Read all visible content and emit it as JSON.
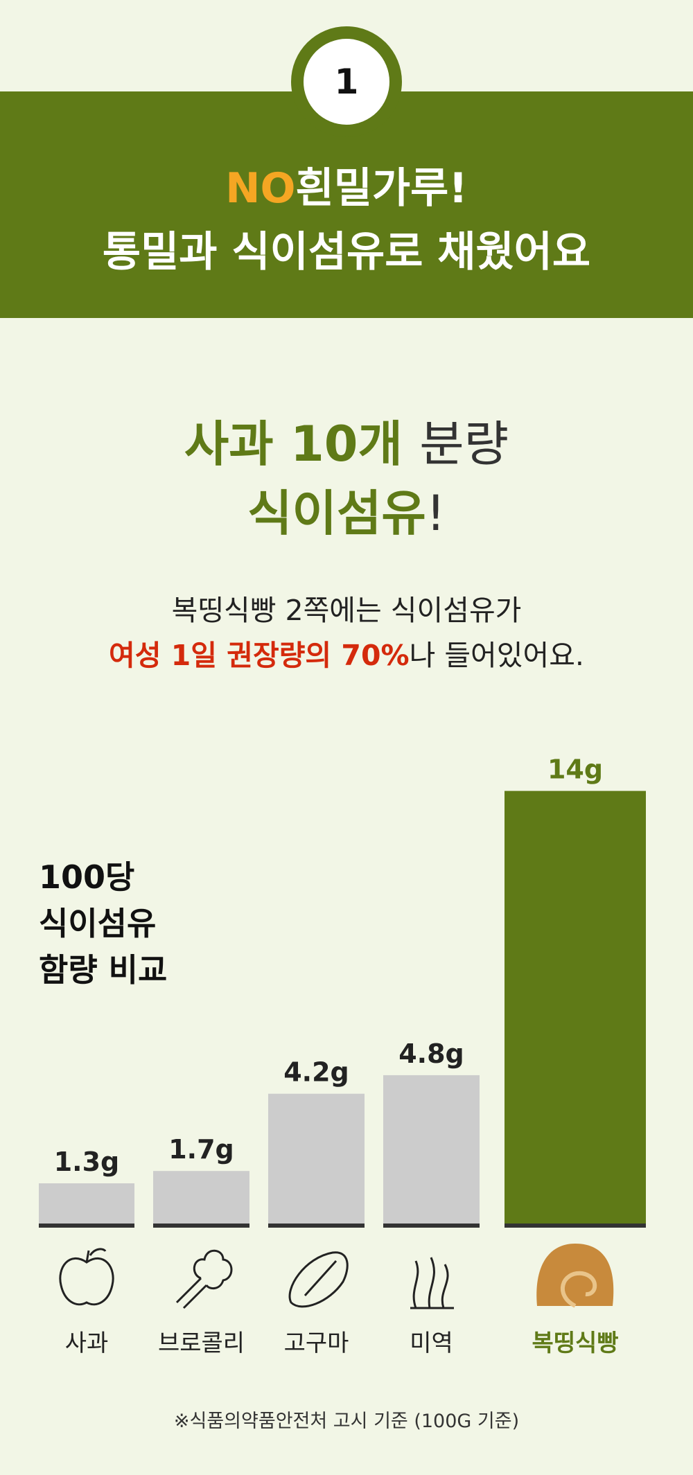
{
  "badge": "1",
  "header": {
    "line1_highlight": "NO",
    "line1_rest": "흰밀가루!",
    "line2": "통밀과 식이섬유로 채웠어요"
  },
  "headline": {
    "part1": "사과 10개",
    "part2": "분량",
    "line2": "식이섬유",
    "line2_mark": "!"
  },
  "description": {
    "line1": "복띵식빵 2쪽에는 식이섬유가",
    "line2_highlight": "여성 1일 권장량의 70%",
    "line2_rest": "나 들어있어요."
  },
  "chart_data": {
    "type": "bar",
    "title": [
      "100당",
      "식이섬유",
      "함량 비교"
    ],
    "categories": [
      "사과",
      "브로콜리",
      "고구마",
      "미역",
      "복띵식빵"
    ],
    "values": [
      1.3,
      1.7,
      4.2,
      4.8,
      14
    ],
    "value_labels": [
      "1.3g",
      "1.7g",
      "4.2g",
      "4.8g",
      "14g"
    ],
    "colors": [
      "#cccccc",
      "#cccccc",
      "#cccccc",
      "#cccccc",
      "#5f7a17"
    ],
    "label_colors": [
      "#222222",
      "#222222",
      "#222222",
      "#222222",
      "#5f7a17"
    ]
  },
  "footnote": "※식품의약품안전처 고시 기준 (100G 기준)"
}
